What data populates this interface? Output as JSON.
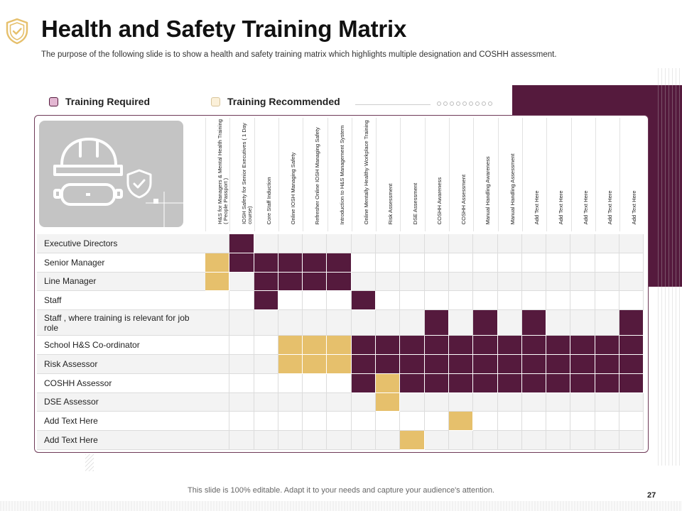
{
  "title": "Health and Safety Training Matrix",
  "subtitle": "The purpose of the following slide is to show a health and safety training matrix which highlights multiple designation and COSHH assessment.",
  "legend": {
    "required_label": "Training Required",
    "recommended_label": "Training Recommended"
  },
  "colors": {
    "required": "#551a3d",
    "recommended": "#e6c06c",
    "legend_required_swatch": "#e3b7d2",
    "legend_recommended_swatch": "#fbf0d9"
  },
  "columns": [
    "H&S for Managers & Mental Health Training ( People Passport )",
    "IOSH Safety for Senior Executives ( 1 Day course)",
    "Core Staff Induction",
    "Online IOSH Managing Safety",
    "Refresher Online IOSH Managing Safety",
    "Introduction to H&S Management System",
    "Online Mentally Healthy Workplace Training",
    "Risk Assessment",
    "DSE Assessment",
    "COSHH Awareness",
    "COSHH Assessment",
    "Manual Handling Awareness",
    "Manual Handling Assessment",
    "Add Text Here",
    "Add Text Here",
    "Add Text Here",
    "Add Text Here",
    "Add Text Here"
  ],
  "rows": [
    {
      "label": "Executive Directors",
      "cells": [
        "",
        "R",
        "",
        "",
        "",
        "",
        "",
        "",
        "",
        "",
        "",
        "",
        "",
        "",
        "",
        "",
        "",
        ""
      ]
    },
    {
      "label": "Senior Manager",
      "cells": [
        "C",
        "R",
        "R",
        "R",
        "R",
        "R",
        "",
        "",
        "",
        "",
        "",
        "",
        "",
        "",
        "",
        "",
        "",
        ""
      ]
    },
    {
      "label": "Line Manager",
      "cells": [
        "C",
        "",
        "R",
        "R",
        "R",
        "R",
        "",
        "",
        "",
        "",
        "",
        "",
        "",
        "",
        "",
        "",
        "",
        ""
      ]
    },
    {
      "label": "Staff",
      "cells": [
        "",
        "",
        "R",
        "",
        "",
        "",
        "R",
        "",
        "",
        "",
        "",
        "",
        "",
        "",
        "",
        "",
        "",
        ""
      ]
    },
    {
      "label": "Staff , where training is relevant  for job role",
      "cells": [
        "",
        "",
        "",
        "",
        "",
        "",
        "",
        "",
        "",
        "R",
        "",
        "R",
        "",
        "R",
        "",
        "",
        "",
        "R"
      ]
    },
    {
      "label": "School H&S Co-ordinator",
      "cells": [
        "",
        "",
        "",
        "C",
        "C",
        "C",
        "R",
        "R",
        "R",
        "R",
        "R",
        "R",
        "R",
        "R",
        "R",
        "R",
        "R",
        "R"
      ]
    },
    {
      "label": "Risk Assessor",
      "cells": [
        "",
        "",
        "",
        "C",
        "C",
        "C",
        "R",
        "R",
        "R",
        "R",
        "R",
        "R",
        "R",
        "R",
        "R",
        "R",
        "R",
        "R"
      ]
    },
    {
      "label": "COSHH  Assessor",
      "cells": [
        "",
        "",
        "",
        "",
        "",
        "",
        "R",
        "C",
        "R",
        "R",
        "R",
        "R",
        "R",
        "R",
        "R",
        "R",
        "R",
        "R"
      ]
    },
    {
      "label": "DSE Assessor",
      "cells": [
        "",
        "",
        "",
        "",
        "",
        "",
        "",
        "C",
        "",
        "",
        "",
        "",
        "",
        "",
        "",
        "",
        "",
        ""
      ]
    },
    {
      "label": "Add Text Here",
      "cells": [
        "",
        "",
        "",
        "",
        "",
        "",
        "",
        "",
        "",
        "",
        "C",
        "",
        "",
        "",
        "",
        "",
        "",
        ""
      ]
    },
    {
      "label": "Add Text Here",
      "cells": [
        "",
        "",
        "",
        "",
        "",
        "",
        "",
        "",
        "C",
        "",
        "",
        "",
        "",
        "",
        "",
        "",
        "",
        ""
      ]
    }
  ],
  "footer": "This slide is 100% editable. Adapt it to your needs and capture your audience's attention.",
  "page_number": "27"
}
